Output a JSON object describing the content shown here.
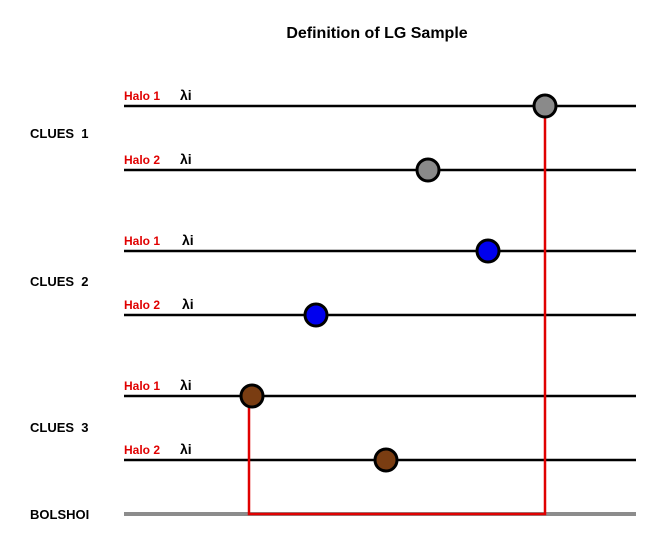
{
  "title": "Definition of LG Sample",
  "colors": {
    "line": "#000000",
    "halo_label": "#e00000",
    "connector": "#e00000",
    "bolshoi_line": "#8c8c8c",
    "gray_marker": "#8a8a8a",
    "blue_marker": "#0000ee",
    "brown_marker": "#7a3d12"
  },
  "groups": [
    {
      "label": "CLUES  1",
      "rows": [
        {
          "halo": "Halo 1",
          "lambda": "λi",
          "marker": "gray-marker-icon",
          "value": 0.8
        },
        {
          "halo": "Halo 2",
          "lambda": "λi",
          "marker": "gray-marker-icon",
          "value": 0.59
        }
      ]
    },
    {
      "label": "CLUES  2",
      "rows": [
        {
          "halo": "Halo 1",
          "lambda": "λi",
          "marker": "blue-marker-icon",
          "value": 0.71
        },
        {
          "halo": "Halo 2",
          "lambda": "λi",
          "marker": "blue-marker-icon",
          "value": 0.38
        }
      ]
    },
    {
      "label": "CLUES  3",
      "rows": [
        {
          "halo": "Halo 1",
          "lambda": "λi",
          "marker": "brown-marker-icon",
          "value": 0.24
        },
        {
          "halo": "Halo 2",
          "lambda": "λi",
          "marker": "brown-marker-icon",
          "value": 0.51
        }
      ]
    }
  ],
  "bolshoi": {
    "label": "BOLSHOI"
  }
}
